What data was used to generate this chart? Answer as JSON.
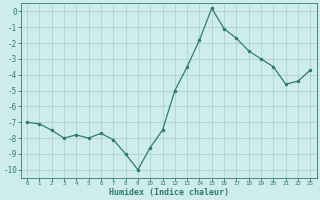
{
  "x": [
    0,
    1,
    2,
    3,
    4,
    5,
    6,
    7,
    8,
    9,
    10,
    11,
    12,
    13,
    14,
    15,
    16,
    17,
    18,
    19,
    20,
    21,
    22,
    23
  ],
  "y": [
    -7.0,
    -7.1,
    -7.5,
    -8.0,
    -7.8,
    -8.0,
    -7.7,
    -8.1,
    -9.0,
    -10.0,
    -8.6,
    -7.5,
    -5.0,
    -3.5,
    -1.8,
    0.2,
    -1.1,
    -1.7,
    -2.5,
    -3.0,
    -3.5,
    -4.6,
    -4.4,
    -3.7
  ],
  "line_color": "#2e7d6e",
  "marker_color": "#2e7d6e",
  "background_color": "#ceecea",
  "grid_color": "#aacfcc",
  "tick_label_color": "#2e7d6e",
  "xlabel": "Humidex (Indice chaleur)",
  "ylim": [
    -10.5,
    0.5
  ],
  "xlim": [
    -0.5,
    23.5
  ],
  "yticks": [
    0,
    -1,
    -2,
    -3,
    -4,
    -5,
    -6,
    -7,
    -8,
    -9,
    -10
  ],
  "xticks": [
    0,
    1,
    2,
    3,
    4,
    5,
    6,
    7,
    8,
    9,
    10,
    11,
    12,
    13,
    14,
    15,
    16,
    17,
    18,
    19,
    20,
    21,
    22,
    23
  ],
  "xlabel_fontsize": 6.0,
  "ytick_fontsize": 5.5,
  "xtick_fontsize": 4.2
}
